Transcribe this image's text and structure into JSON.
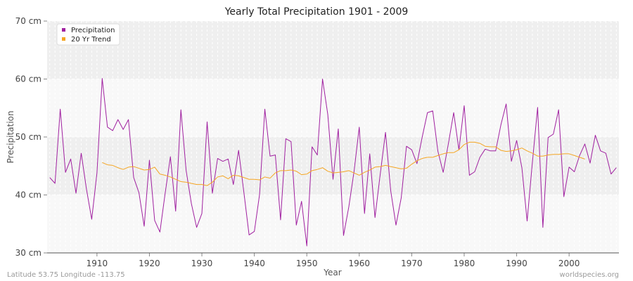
{
  "chart_data": {
    "type": "line",
    "title": "Yearly Total Precipitation 1901 - 2009",
    "xlabel": "Year",
    "ylabel": "Precipitation",
    "xlim": [
      1901,
      2009
    ],
    "ylim": [
      30,
      70
    ],
    "x_ticks": [
      1910,
      1920,
      1930,
      1940,
      1950,
      1960,
      1970,
      1980,
      1990,
      2000
    ],
    "y_ticks": [
      30,
      40,
      50,
      60,
      70
    ],
    "y_tick_labels": [
      "30 cm",
      "40 cm",
      "50 cm",
      "60 cm",
      "70 cm"
    ],
    "legend_position": "top-left",
    "grid": true,
    "series": [
      {
        "name": "Precipitation",
        "color": "#a020a0",
        "x_start": 1901,
        "values": [
          43.0,
          42.0,
          54.8,
          43.9,
          46.2,
          40.3,
          47.2,
          41.0,
          35.8,
          43.8,
          60.1,
          51.7,
          51.1,
          53.0,
          51.3,
          53.0,
          43.0,
          40.4,
          34.6,
          46.0,
          35.6,
          33.6,
          40.3,
          46.6,
          37.2,
          54.7,
          44.2,
          38.5,
          34.4,
          36.8,
          52.6,
          40.3,
          46.3,
          45.8,
          46.2,
          41.8,
          47.7,
          40.5,
          33.1,
          33.7,
          40.1,
          54.8,
          46.7,
          46.9,
          35.7,
          49.7,
          49.2,
          34.8,
          38.9,
          31.2,
          48.3,
          46.9,
          60.0,
          53.9,
          42.7,
          51.4,
          33.0,
          37.9,
          44.0,
          51.7,
          36.8,
          47.1,
          36.1,
          43.6,
          50.8,
          40.7,
          34.8,
          39.5,
          48.4,
          47.8,
          45.4,
          50.0,
          54.2,
          54.5,
          47.5,
          43.9,
          48.9,
          54.2,
          47.8,
          55.4,
          43.4,
          44.0,
          46.5,
          47.9,
          47.6,
          47.6,
          52.1,
          55.7,
          45.8,
          49.4,
          44.7,
          35.5,
          45.6,
          55.1,
          34.4,
          49.9,
          50.5,
          54.7,
          39.7,
          44.8,
          44.0,
          46.8,
          48.8,
          45.5,
          50.3,
          47.6,
          47.2,
          43.6,
          44.7
        ]
      },
      {
        "name": "20 Yr Trend",
        "color": "#f5a623",
        "x_start": 1911,
        "values": [
          45.6,
          45.2,
          45.1,
          44.7,
          44.4,
          44.8,
          44.9,
          44.6,
          44.3,
          44.4,
          44.8,
          43.6,
          43.4,
          43.1,
          42.7,
          42.3,
          42.2,
          42.0,
          41.8,
          41.8,
          41.6,
          42.2,
          43.1,
          43.3,
          42.8,
          43.4,
          43.3,
          43.0,
          42.7,
          42.7,
          42.6,
          43.1,
          42.9,
          43.8,
          44.2,
          44.2,
          44.3,
          44.1,
          43.5,
          43.6,
          44.2,
          44.4,
          44.7,
          44.1,
          43.8,
          43.9,
          44.0,
          44.2,
          43.8,
          43.4,
          43.9,
          44.3,
          44.8,
          44.9,
          45.1,
          44.9,
          44.7,
          44.5,
          44.6,
          45.3,
          45.9,
          46.3,
          46.5,
          46.5,
          46.8,
          47.1,
          47.3,
          47.3,
          47.8,
          48.7,
          49.1,
          49.1,
          48.9,
          48.4,
          48.3,
          48.3,
          47.7,
          47.5,
          47.6,
          47.8,
          48.1,
          47.6,
          47.2,
          46.7,
          46.7,
          46.9,
          47.0,
          47.0,
          47.1,
          47.1,
          46.8,
          46.5,
          46.2
        ]
      }
    ]
  },
  "footer": {
    "location": "Latitude 53.75 Longitude -113.75",
    "source": "worldspecies.org"
  }
}
